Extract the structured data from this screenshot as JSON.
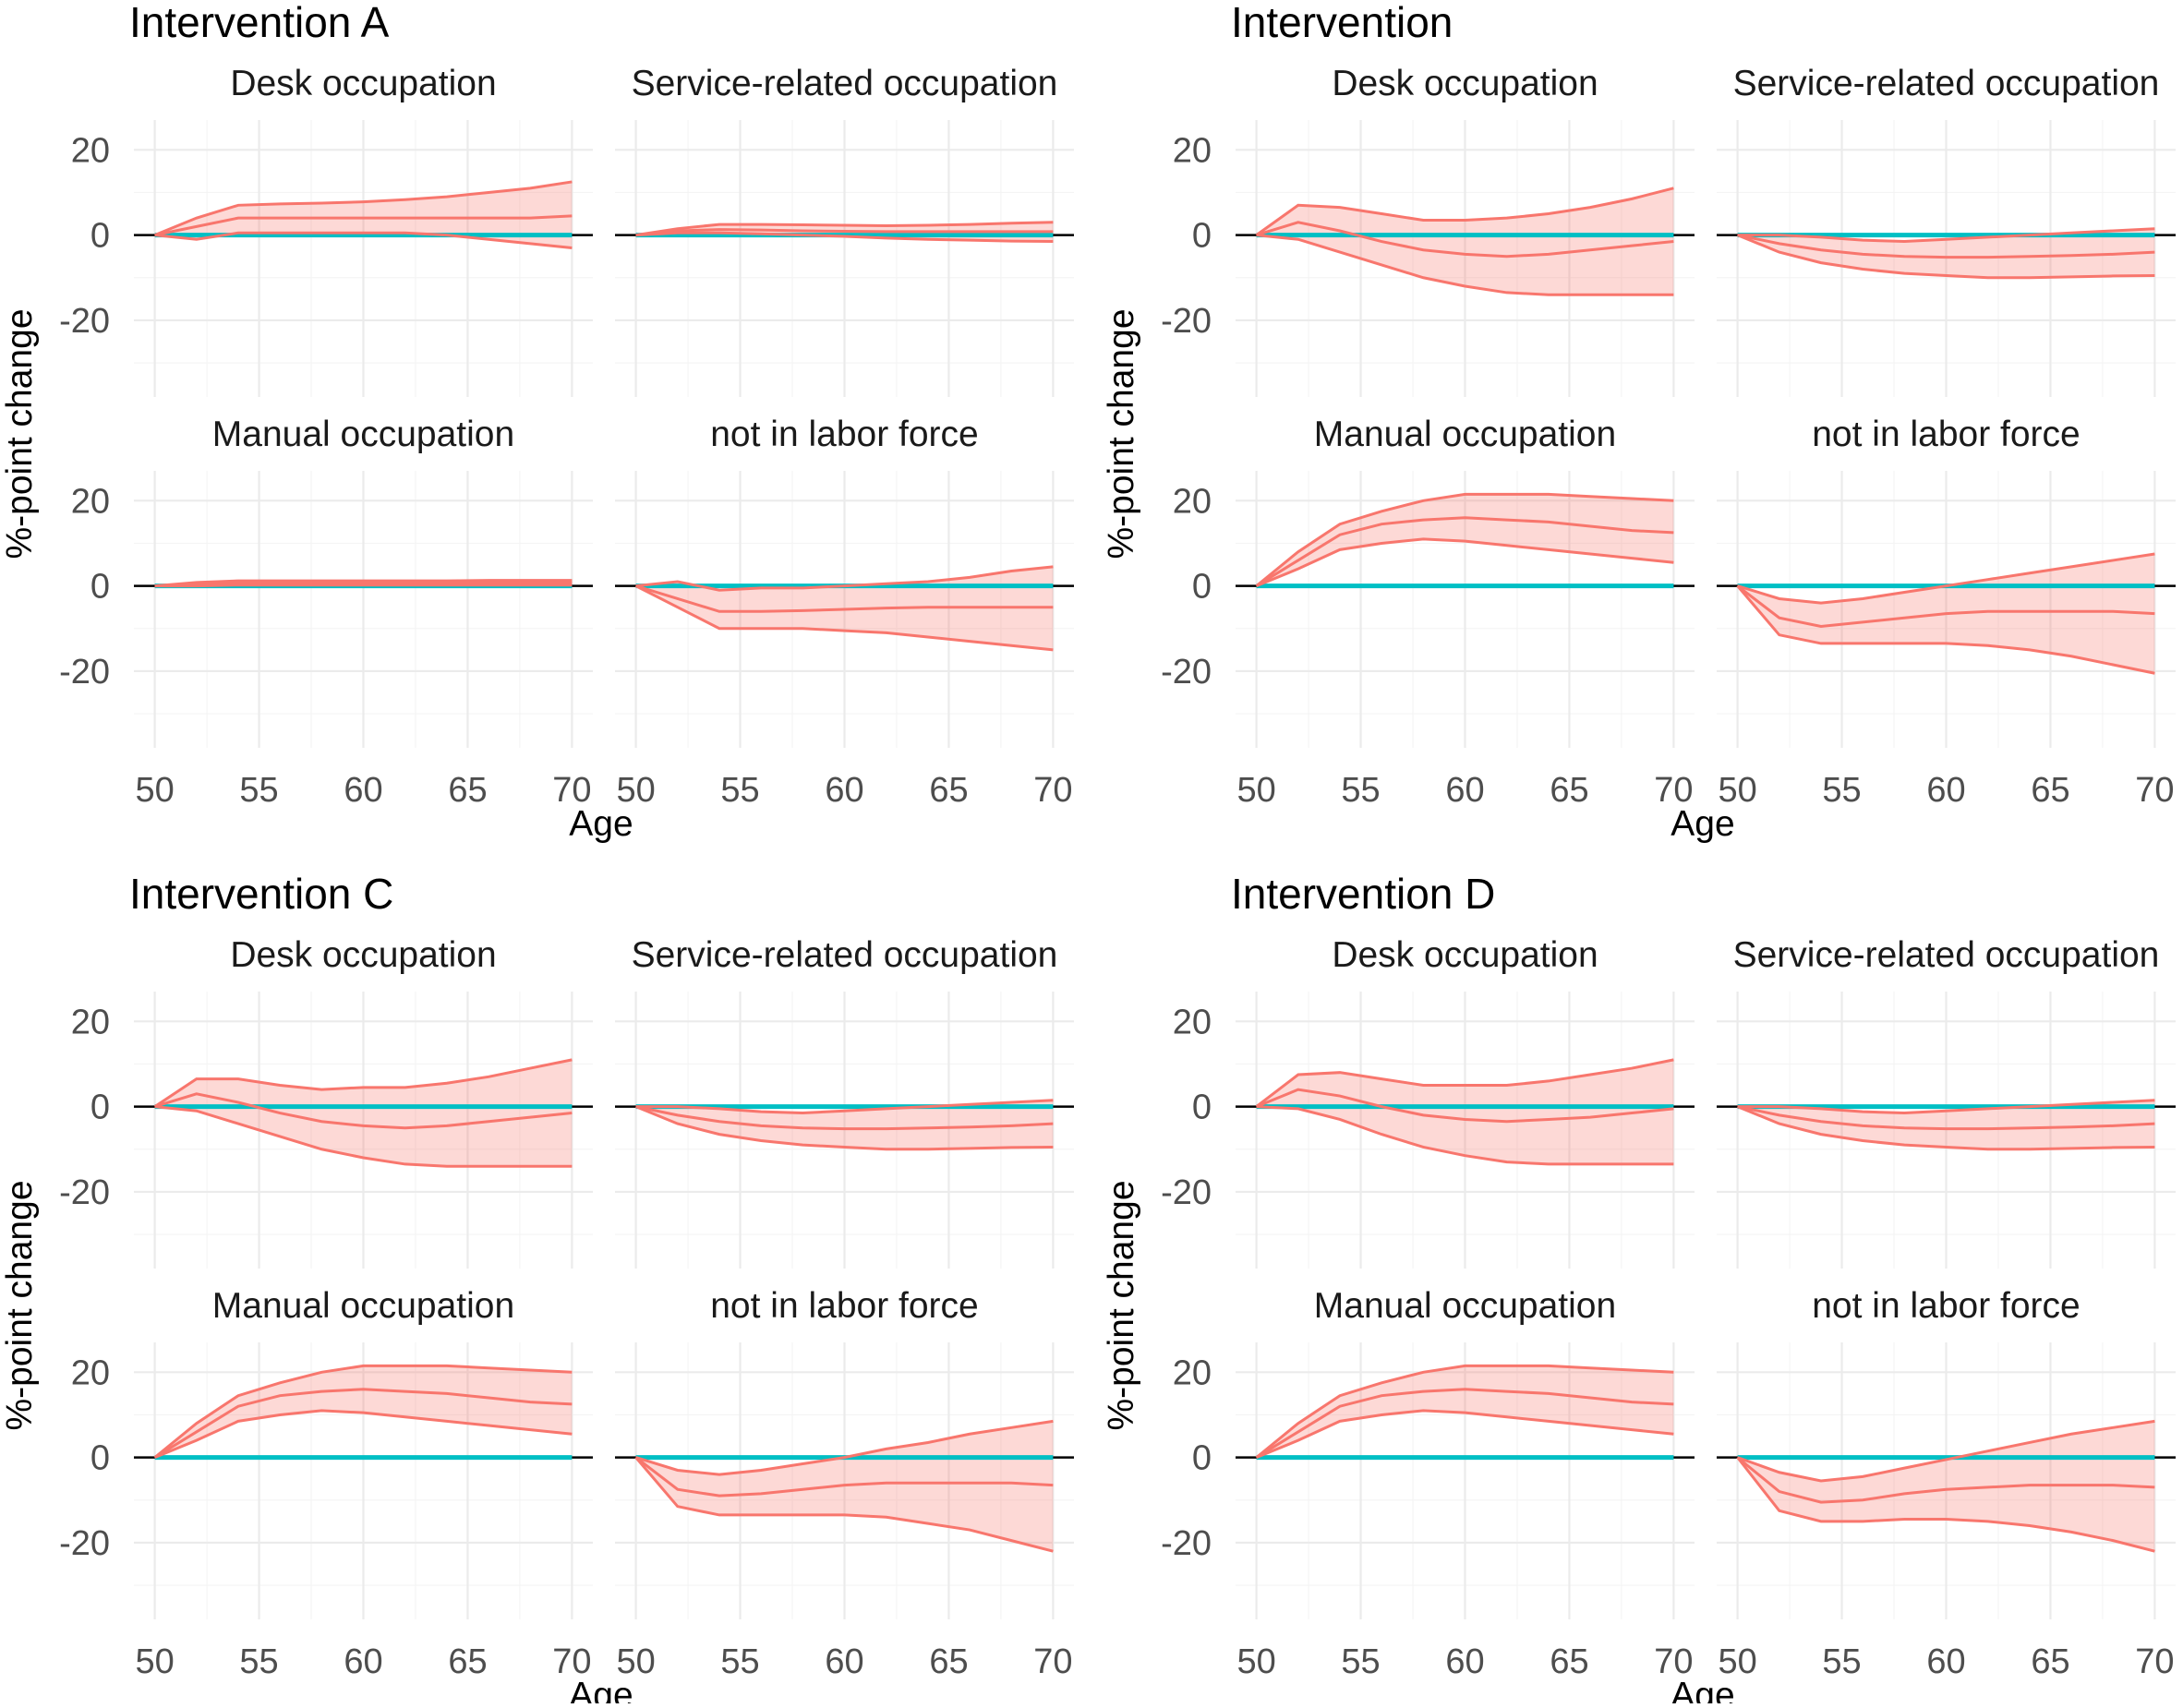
{
  "chart_data": {
    "type": "line",
    "x_axis_label": "Age",
    "y_axis_label": "%-point change",
    "x_ticks": [
      50,
      55,
      60,
      65,
      70
    ],
    "y_ticks": [
      20,
      0,
      -20
    ],
    "xlim": [
      49,
      71
    ],
    "ylim": [
      -38,
      27
    ],
    "age": [
      50,
      52,
      54,
      56,
      58,
      60,
      62,
      64,
      66,
      68,
      70
    ],
    "series_style": {
      "estimate_color": "#f8766d",
      "reference_color": "#00bfc4",
      "ribbon_color": "#f8766d"
    },
    "groups": [
      {
        "title": "Intervention A",
        "panels": [
          {
            "label": "Desk occupation",
            "lower": [
              0,
              -1,
              0.5,
              0.5,
              0.5,
              0.5,
              0.5,
              0,
              -1,
              -2,
              -3
            ],
            "mid": [
              0,
              2,
              4,
              4,
              4,
              4,
              4,
              4,
              4,
              4,
              4.5
            ],
            "upper": [
              0,
              4,
              7,
              7.3,
              7.5,
              7.8,
              8.3,
              9,
              10,
              11,
              12.5
            ]
          },
          {
            "label": "Service-related occupation",
            "lower": [
              0,
              0.5,
              0.5,
              0.3,
              0,
              -0.3,
              -0.7,
              -1,
              -1.2,
              -1.4,
              -1.5
            ],
            "mid": [
              0,
              1,
              1.3,
              1.2,
              1,
              0.9,
              0.8,
              0.8,
              0.8,
              0.8,
              0.8
            ],
            "upper": [
              0,
              1.5,
              2.5,
              2.5,
              2.4,
              2.3,
              2.2,
              2.3,
              2.5,
              2.8,
              3
            ]
          },
          {
            "label": "Manual occupation",
            "lower": [
              0,
              0,
              0.2,
              0.2,
              0.2,
              0.2,
              0.2,
              0.2,
              0.2,
              0.2,
              0.2
            ],
            "mid": [
              0,
              0.5,
              0.7,
              0.7,
              0.7,
              0.7,
              0.7,
              0.7,
              0.7,
              0.7,
              0.7
            ],
            "upper": [
              0,
              0.8,
              1.2,
              1.2,
              1.2,
              1.2,
              1.2,
              1.2,
              1.3,
              1.3,
              1.3
            ]
          },
          {
            "label": "not in labor force",
            "lower": [
              0,
              -5,
              -10,
              -10,
              -10,
              -10.5,
              -11,
              -12,
              -13,
              -14,
              -15
            ],
            "mid": [
              0,
              -3,
              -6,
              -6,
              -5.8,
              -5.5,
              -5.2,
              -5,
              -5,
              -5,
              -5
            ],
            "upper": [
              0,
              1,
              -1,
              -0.5,
              -0.5,
              0,
              0.5,
              1,
              2,
              3.5,
              4.5
            ]
          }
        ]
      },
      {
        "title": "Intervention",
        "panels": [
          {
            "label": "Desk occupation",
            "lower": [
              0,
              -1,
              -4,
              -7,
              -10,
              -12,
              -13.5,
              -14,
              -14,
              -14,
              -14
            ],
            "mid": [
              0,
              3,
              1,
              -1.5,
              -3.5,
              -4.5,
              -5,
              -4.5,
              -3.5,
              -2.5,
              -1.5
            ],
            "upper": [
              0,
              7,
              6.5,
              5,
              3.5,
              3.5,
              4,
              5,
              6.5,
              8.5,
              11
            ]
          },
          {
            "label": "Service-related occupation",
            "lower": [
              0,
              -4,
              -6.5,
              -8,
              -9,
              -9.5,
              -10,
              -10,
              -9.8,
              -9.6,
              -9.5
            ],
            "mid": [
              0,
              -2,
              -3.5,
              -4.5,
              -5,
              -5.2,
              -5.2,
              -5,
              -4.8,
              -4.5,
              -4
            ],
            "upper": [
              0,
              0,
              -0.5,
              -1.2,
              -1.5,
              -1,
              -0.5,
              0,
              0.5,
              1,
              1.5
            ]
          },
          {
            "label": "Manual occupation",
            "lower": [
              0,
              4,
              8.5,
              10,
              11,
              10.5,
              9.5,
              8.5,
              7.5,
              6.5,
              5.5
            ],
            "mid": [
              0,
              6,
              12,
              14.5,
              15.5,
              16,
              15.5,
              15,
              14,
              13,
              12.5
            ],
            "upper": [
              0,
              8,
              14.5,
              17.5,
              20,
              21.5,
              21.5,
              21.5,
              21,
              20.5,
              20
            ]
          },
          {
            "label": "not in labor force",
            "lower": [
              0,
              -11.5,
              -13.5,
              -13.5,
              -13.5,
              -13.5,
              -14,
              -15,
              -16.5,
              -18.5,
              -20.5
            ],
            "mid": [
              0,
              -7.5,
              -9.5,
              -8.5,
              -7.5,
              -6.5,
              -6,
              -6,
              -6,
              -6,
              -6.5
            ],
            "upper": [
              0,
              -3,
              -4,
              -3,
              -1.5,
              0,
              1.5,
              3,
              4.5,
              6,
              7.5
            ]
          }
        ]
      },
      {
        "title": "Intervention C",
        "panels": [
          {
            "label": "Desk occupation",
            "lower": [
              0,
              -1,
              -4,
              -7,
              -10,
              -12,
              -13.5,
              -14,
              -14,
              -14,
              -14
            ],
            "mid": [
              0,
              3,
              1,
              -1.5,
              -3.5,
              -4.5,
              -5,
              -4.5,
              -3.5,
              -2.5,
              -1.5
            ],
            "upper": [
              0,
              6.5,
              6.5,
              5,
              4,
              4.5,
              4.5,
              5.5,
              7,
              9,
              11
            ]
          },
          {
            "label": "Service-related occupation",
            "lower": [
              0,
              -4,
              -6.5,
              -8,
              -9,
              -9.5,
              -10,
              -10,
              -9.8,
              -9.6,
              -9.5
            ],
            "mid": [
              0,
              -2,
              -3.5,
              -4.5,
              -5,
              -5.2,
              -5.2,
              -5,
              -4.8,
              -4.5,
              -4
            ],
            "upper": [
              0,
              0,
              -0.5,
              -1.2,
              -1.5,
              -1,
              -0.5,
              0,
              0.5,
              1,
              1.5
            ]
          },
          {
            "label": "Manual occupation",
            "lower": [
              0,
              4,
              8.5,
              10,
              11,
              10.5,
              9.5,
              8.5,
              7.5,
              6.5,
              5.5
            ],
            "mid": [
              0,
              6,
              12,
              14.5,
              15.5,
              16,
              15.5,
              15,
              14,
              13,
              12.5
            ],
            "upper": [
              0,
              8,
              14.5,
              17.5,
              20,
              21.5,
              21.5,
              21.5,
              21,
              20.5,
              20
            ]
          },
          {
            "label": "not in labor force",
            "lower": [
              0,
              -11.5,
              -13.5,
              -13.5,
              -13.5,
              -13.5,
              -14,
              -15.5,
              -17,
              -19.5,
              -22
            ],
            "mid": [
              0,
              -7.5,
              -9,
              -8.5,
              -7.5,
              -6.5,
              -6,
              -6,
              -6,
              -6,
              -6.5
            ],
            "upper": [
              0,
              -3,
              -4,
              -3,
              -1.5,
              0,
              2,
              3.5,
              5.5,
              7,
              8.5
            ]
          }
        ]
      },
      {
        "title": "Intervention D",
        "panels": [
          {
            "label": "Desk occupation",
            "lower": [
              0,
              -0.5,
              -3,
              -6.5,
              -9.5,
              -11.5,
              -13,
              -13.5,
              -13.5,
              -13.5,
              -13.5
            ],
            "mid": [
              0,
              4,
              2.5,
              0,
              -2,
              -3,
              -3.5,
              -3,
              -2.5,
              -1.5,
              -0.5
            ],
            "upper": [
              0,
              7.5,
              8,
              6.5,
              5,
              5,
              5,
              6,
              7.5,
              9,
              11
            ]
          },
          {
            "label": "Service-related occupation",
            "lower": [
              0,
              -4,
              -6.5,
              -8,
              -9,
              -9.5,
              -10,
              -10,
              -9.8,
              -9.6,
              -9.5
            ],
            "mid": [
              0,
              -2,
              -3.5,
              -4.5,
              -5,
              -5.2,
              -5.2,
              -5,
              -4.8,
              -4.5,
              -4
            ],
            "upper": [
              0,
              0,
              -0.5,
              -1.2,
              -1.5,
              -1,
              -0.5,
              0,
              0.5,
              1,
              1.5
            ]
          },
          {
            "label": "Manual occupation",
            "lower": [
              0,
              4,
              8.5,
              10,
              11,
              10.5,
              9.5,
              8.5,
              7.5,
              6.5,
              5.5
            ],
            "mid": [
              0,
              6,
              12,
              14.5,
              15.5,
              16,
              15.5,
              15,
              14,
              13,
              12.5
            ],
            "upper": [
              0,
              8,
              14.5,
              17.5,
              20,
              21.5,
              21.5,
              21.5,
              21,
              20.5,
              20
            ]
          },
          {
            "label": "not in labor force",
            "lower": [
              0,
              -12.5,
              -15,
              -15,
              -14.5,
              -14.5,
              -15,
              -16,
              -17.5,
              -19.5,
              -22
            ],
            "mid": [
              0,
              -8,
              -10.5,
              -10,
              -8.5,
              -7.5,
              -7,
              -6.5,
              -6.5,
              -6.5,
              -7
            ],
            "upper": [
              0,
              -3.5,
              -5.5,
              -4.5,
              -2.5,
              -0.5,
              1.5,
              3.5,
              5.5,
              7,
              8.5
            ]
          }
        ]
      }
    ]
  }
}
